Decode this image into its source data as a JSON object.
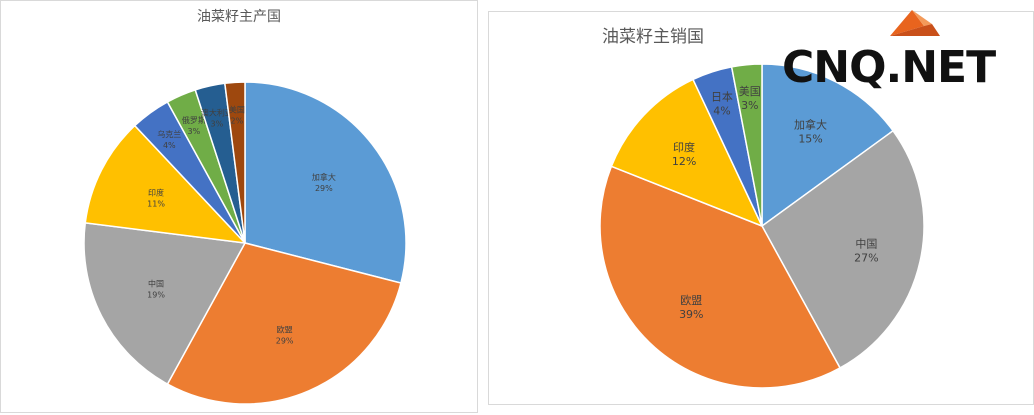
{
  "chart_data": [
    {
      "type": "pie",
      "title": "油菜籽主产国",
      "slices": [
        {
          "label": "加拿大",
          "value": 29,
          "color": "#5b9bd5"
        },
        {
          "label": "欧盟",
          "value": 29,
          "color": "#ed7d31"
        },
        {
          "label": "中国",
          "value": 19,
          "color": "#a5a5a5"
        },
        {
          "label": "印度",
          "value": 11,
          "color": "#ffc000"
        },
        {
          "label": "乌克兰",
          "value": 4,
          "color": "#4472c4"
        },
        {
          "label": "俄罗斯",
          "value": 3,
          "color": "#70ad47"
        },
        {
          "label": "澳大利亚",
          "value": 3,
          "color": "#255e91"
        },
        {
          "label": "美国",
          "value": 2,
          "color": "#9e480e"
        }
      ]
    },
    {
      "type": "pie",
      "title": "油菜籽主销国",
      "slices": [
        {
          "label": "加拿大",
          "value": 15,
          "color": "#5b9bd5"
        },
        {
          "label": "中国",
          "value": 27,
          "color": "#a5a5a5"
        },
        {
          "label": "欧盟",
          "value": 39,
          "color": "#ed7d31"
        },
        {
          "label": "印度",
          "value": 12,
          "color": "#ffc000"
        },
        {
          "label": "日本",
          "value": 4,
          "color": "#4472c4"
        },
        {
          "label": "美国",
          "value": 3,
          "color": "#70ad47"
        }
      ]
    }
  ],
  "watermark": {
    "text": "CNQ.NET",
    "logo_color": "#e8641e"
  }
}
